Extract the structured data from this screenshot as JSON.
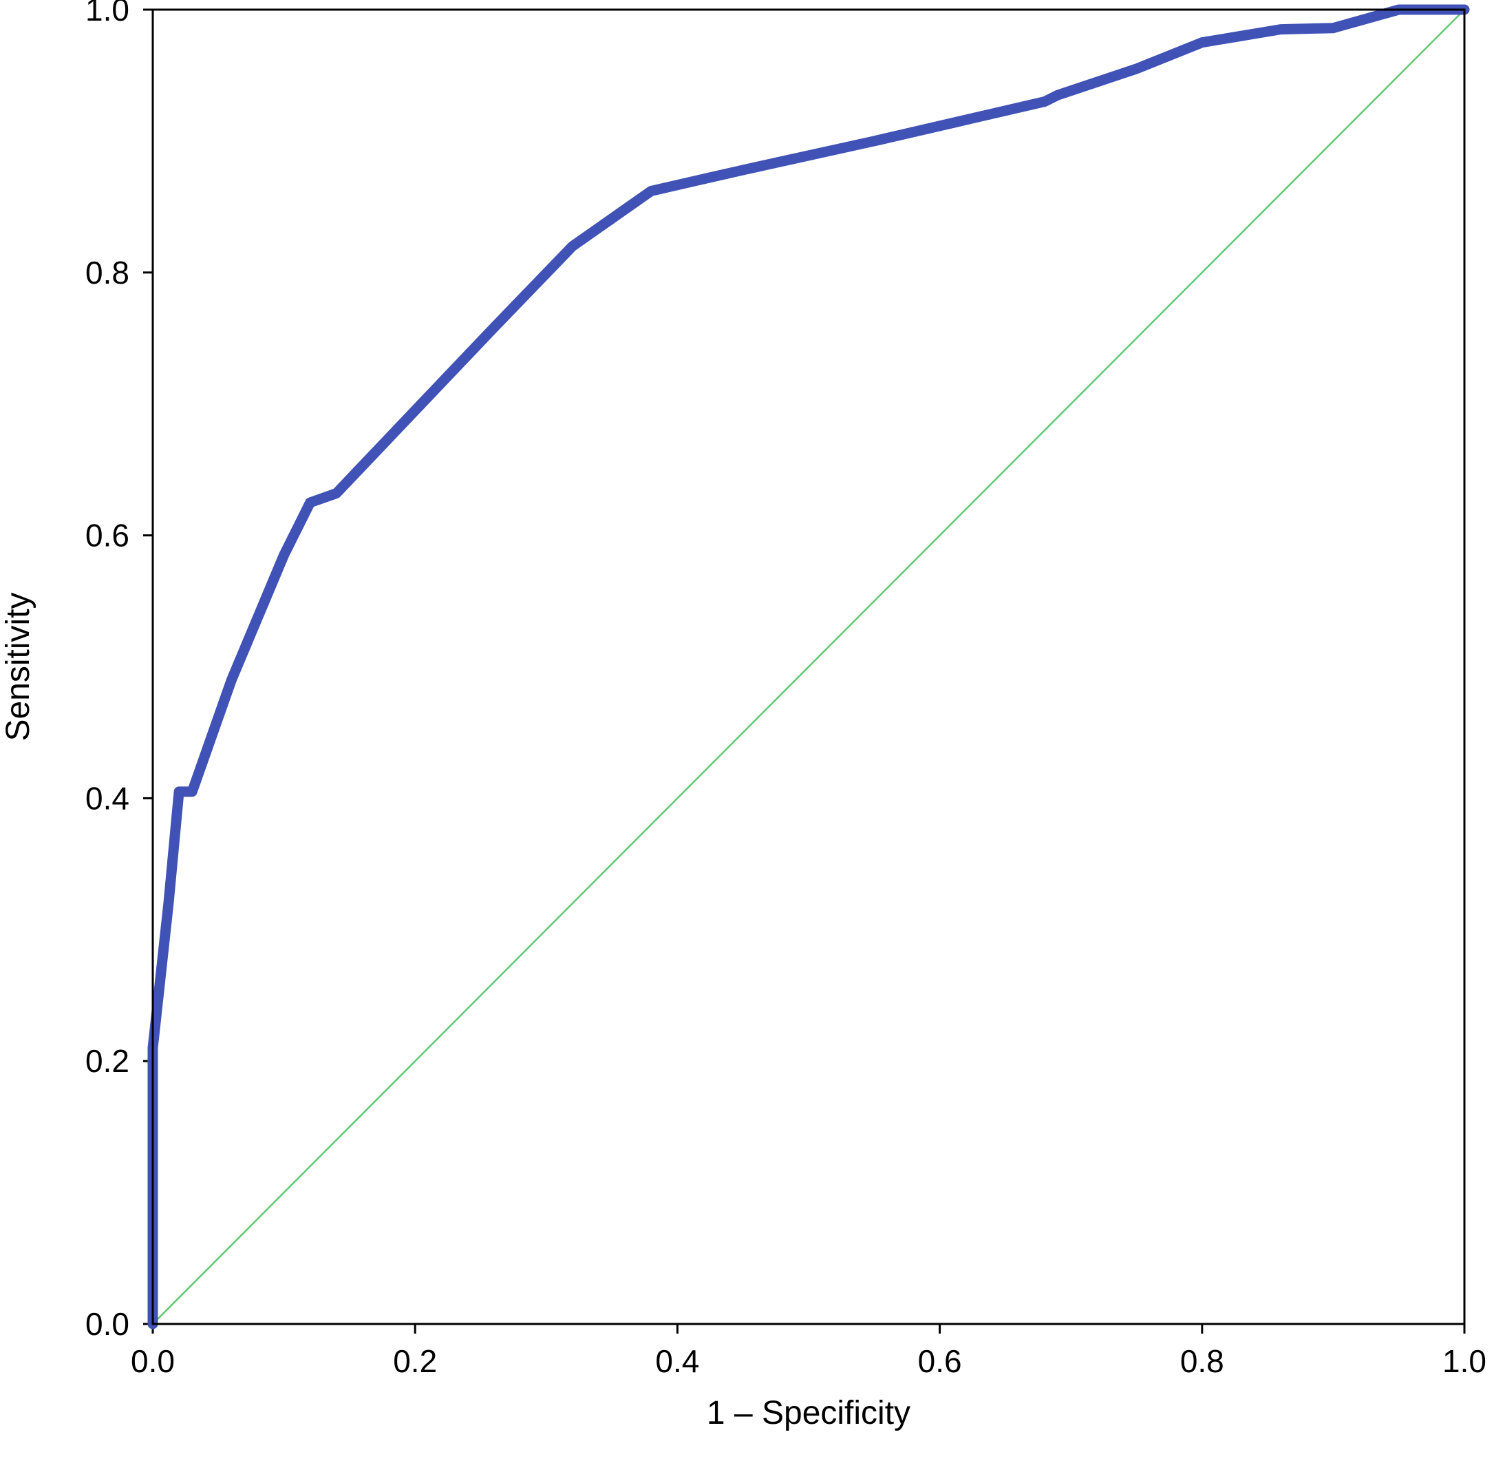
{
  "chart_data": {
    "type": "line",
    "title": "",
    "xlabel": "1 – Specificity",
    "ylabel": "Sensitivity",
    "xlim": [
      0,
      1
    ],
    "ylim": [
      0,
      1
    ],
    "x_ticks": [
      "0.0",
      "0.2",
      "0.4",
      "0.6",
      "0.8",
      "1.0"
    ],
    "y_ticks": [
      "0.0",
      "0.2",
      "0.4",
      "0.6",
      "0.8",
      "1.0"
    ],
    "grid": false,
    "legend": "none",
    "series": [
      {
        "color": "#4052b5",
        "points": [
          [
            0.0,
            0.0
          ],
          [
            0.0,
            0.21
          ],
          [
            0.012,
            0.32
          ],
          [
            0.02,
            0.405
          ],
          [
            0.03,
            0.405
          ],
          [
            0.06,
            0.49
          ],
          [
            0.1,
            0.585
          ],
          [
            0.12,
            0.625
          ],
          [
            0.14,
            0.632
          ],
          [
            0.2,
            0.695
          ],
          [
            0.26,
            0.758
          ],
          [
            0.32,
            0.82
          ],
          [
            0.38,
            0.862
          ],
          [
            0.45,
            0.878
          ],
          [
            0.55,
            0.9
          ],
          [
            0.68,
            0.93
          ],
          [
            0.69,
            0.935
          ],
          [
            0.75,
            0.955
          ],
          [
            0.8,
            0.975
          ],
          [
            0.86,
            0.985
          ],
          [
            0.9,
            0.986
          ],
          [
            0.95,
            1.0
          ],
          [
            1.0,
            1.0
          ]
        ]
      },
      {
        "color": "#5fc872",
        "points": [
          [
            0.0,
            0.0
          ],
          [
            1.0,
            1.0
          ]
        ]
      }
    ]
  }
}
